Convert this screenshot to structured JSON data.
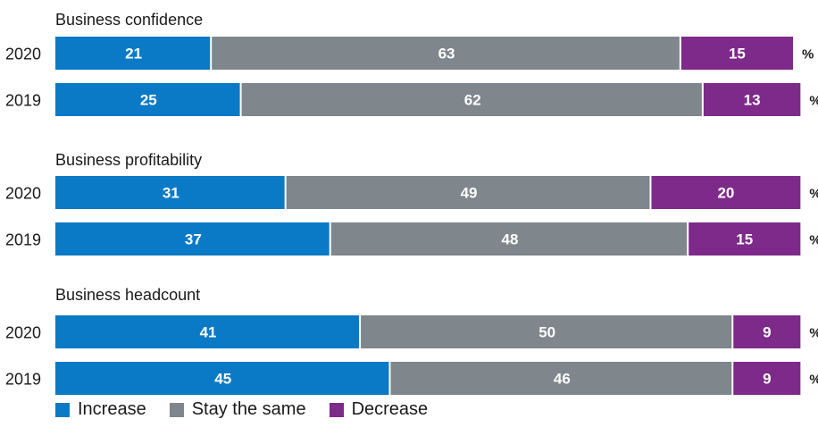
{
  "chart_data": {
    "type": "bar",
    "orientation": "horizontal",
    "stacked": true,
    "unit": "%",
    "colors": {
      "Increase": "#0a7ac6",
      "Stay the same": "#7f868c",
      "Decrease": "#7e2a8a"
    },
    "legend": [
      "Increase",
      "Stay the same",
      "Decrease"
    ],
    "legend_placement": "bottom-left",
    "groups": [
      {
        "title": "Business confidence",
        "rows": [
          {
            "year": "2020",
            "Increase": 21,
            "Stay the same": 63,
            "Decrease": 15
          },
          {
            "year": "2019",
            "Increase": 25,
            "Stay the same": 62,
            "Decrease": 13
          }
        ]
      },
      {
        "title": "Business profitability",
        "rows": [
          {
            "year": "2020",
            "Increase": 31,
            "Stay the same": 49,
            "Decrease": 20
          },
          {
            "year": "2019",
            "Increase": 37,
            "Stay the same": 48,
            "Decrease": 15
          }
        ]
      },
      {
        "title": "Business headcount",
        "rows": [
          {
            "year": "2020",
            "Increase": 41,
            "Stay the same": 50,
            "Decrease": 9
          },
          {
            "year": "2019",
            "Increase": 45,
            "Stay the same": 46,
            "Decrease": 9
          }
        ]
      }
    ]
  }
}
